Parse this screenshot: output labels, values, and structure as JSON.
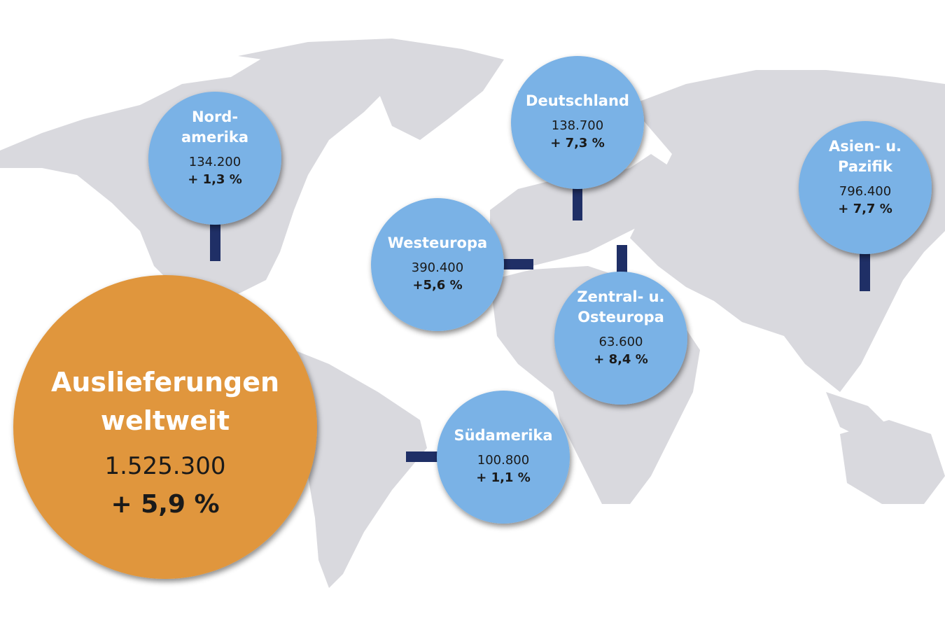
{
  "total": {
    "label": [
      "Auslieferungen",
      "weltweit"
    ],
    "value": "1.525.300",
    "change": "+ 5,9 %"
  },
  "regions": [
    {
      "label": [
        "Nord-",
        "amerika"
      ],
      "value": "134.200",
      "change": "+ 1,3 %"
    },
    {
      "label": [
        "Deutschland"
      ],
      "value": "138.700",
      "change": "+ 7,3 %"
    },
    {
      "label": [
        "Asien- u.",
        "Pazifik"
      ],
      "value": "796.400",
      "change": "+ 7,7 %"
    },
    {
      "label": [
        "Westeuropa"
      ],
      "value": "390.400",
      "change": "+5,6 %"
    },
    {
      "label": [
        "Zentral- u.",
        "Osteuropa"
      ],
      "value": "63.600",
      "change": "+ 8,4 %"
    },
    {
      "label": [
        "Südamerika"
      ],
      "value": "100.800",
      "change": "+ 1,1 %"
    }
  ]
}
